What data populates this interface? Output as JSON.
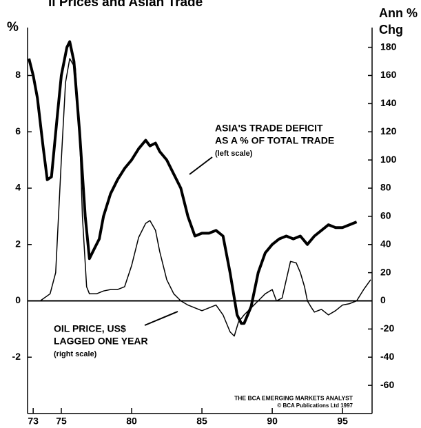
{
  "chart_data": {
    "type": "line",
    "title": "il Prices and Asian Trade",
    "ylabel": "%",
    "y2label": [
      "Ann %",
      "Chg"
    ],
    "xlim": [
      72.6,
      97.1
    ],
    "xticks": [
      73,
      75,
      80,
      85,
      90,
      95
    ],
    "ylim": [
      -4,
      9.7
    ],
    "yticks": [
      -2,
      0,
      2,
      4,
      6,
      8
    ],
    "y2lim": [
      -80,
      194
    ],
    "y2ticks": [
      -60,
      -40,
      -20,
      0,
      20,
      40,
      60,
      80,
      100,
      120,
      140,
      160,
      180
    ],
    "series": [
      {
        "name": "ASIA'S TRADE DEFICIT AS A % OF TOTAL TRADE (left scale)",
        "color": "#000000",
        "width": 4,
        "x": [
          72.7,
          73.0,
          73.3,
          73.7,
          74.0,
          74.3,
          74.7,
          75.0,
          75.4,
          75.6,
          75.9,
          76.3,
          76.7,
          77.0,
          77.3,
          77.7,
          78.0,
          78.5,
          79.0,
          79.5,
          80.0,
          80.5,
          81.0,
          81.3,
          81.7,
          82.0,
          82.5,
          83.0,
          83.5,
          84.0,
          84.5,
          85.0,
          85.5,
          86.0,
          86.5,
          87.0,
          87.5,
          87.8,
          88.0,
          88.5,
          89.0,
          89.5,
          90.0,
          90.5,
          91.0,
          91.5,
          92.0,
          92.5,
          93.0,
          93.5,
          94.0,
          94.5,
          95.0,
          95.5,
          96.0
        ],
        "values": [
          8.6,
          8.0,
          7.2,
          5.5,
          4.3,
          4.4,
          6.5,
          8.0,
          9.0,
          9.2,
          8.5,
          6.0,
          3.0,
          1.5,
          1.8,
          2.2,
          3.0,
          3.8,
          4.3,
          4.7,
          5.0,
          5.4,
          5.7,
          5.5,
          5.6,
          5.3,
          5.0,
          4.5,
          4.0,
          3.0,
          2.3,
          2.4,
          2.4,
          2.5,
          2.3,
          1.0,
          -0.5,
          -0.8,
          -0.8,
          -0.2,
          1.0,
          1.7,
          2.0,
          2.2,
          2.3,
          2.2,
          2.3,
          2.0,
          2.3,
          2.5,
          2.7,
          2.6,
          2.6,
          2.7,
          2.8
        ]
      },
      {
        "name": "OIL PRICE, US$ LAGGED ONE YEAR (right scale)",
        "color": "#000000",
        "width": 1.5,
        "axis": "y2",
        "x": [
          72.7,
          73.5,
          74.2,
          74.6,
          75.0,
          75.3,
          75.6,
          76.0,
          76.3,
          76.5,
          76.8,
          77.0,
          77.5,
          78.0,
          78.5,
          79.0,
          79.5,
          80.0,
          80.5,
          81.0,
          81.3,
          81.7,
          82.0,
          82.5,
          83.0,
          83.5,
          84.0,
          84.5,
          85.0,
          85.5,
          86.0,
          86.5,
          87.0,
          87.3,
          87.6,
          88.0,
          88.5,
          89.0,
          89.5,
          90.0,
          90.3,
          90.7,
          91.0,
          91.3,
          91.7,
          92.0,
          92.3,
          92.5,
          92.8,
          93.0,
          93.5,
          94.0,
          94.5,
          95.0,
          95.5,
          96.0,
          96.5,
          97.0
        ],
        "values": [
          0,
          0,
          5,
          20,
          100,
          155,
          172,
          165,
          120,
          60,
          10,
          5,
          5,
          7,
          8,
          8,
          10,
          25,
          45,
          55,
          57,
          50,
          35,
          15,
          5,
          0,
          -3,
          -5,
          -7,
          -5,
          -3,
          -10,
          -22,
          -25,
          -15,
          -10,
          -5,
          0,
          5,
          8,
          0,
          2,
          15,
          28,
          27,
          20,
          10,
          0,
          -5,
          -8,
          -6,
          -10,
          -7,
          -3,
          -2,
          0,
          8,
          15
        ]
      }
    ],
    "annotations": [
      {
        "lines": [
          "ASIA'S TRADE DEFICIT",
          "AS A % OF TOTAL TRADE",
          "(left scale)"
        ]
      },
      {
        "lines": [
          "OIL PRICE, US$",
          "LAGGED ONE YEAR",
          "(right scale)"
        ]
      }
    ],
    "source": [
      "THE BCA EMERGING MARKETS ANALYST",
      "© BCA Publications Ltd  1997"
    ]
  }
}
